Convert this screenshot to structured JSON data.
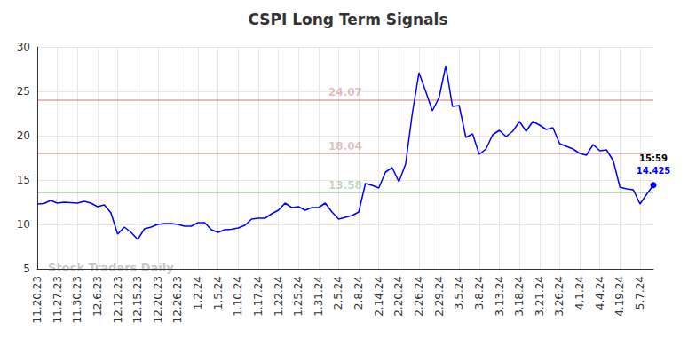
{
  "chart_data": {
    "type": "line",
    "title": "CSPI Long Term Signals",
    "watermark": "Stock Traders Daily",
    "color": "#0000ff",
    "grid": true,
    "categories": [
      "11.20.23",
      null,
      null,
      "11.27.23",
      null,
      null,
      "11.30.23",
      null,
      null,
      "12.6.23",
      null,
      null,
      "12.12.23",
      null,
      null,
      "12.15.23",
      null,
      null,
      "12.20.23",
      null,
      null,
      "12.26.23",
      null,
      null,
      "1.2.24",
      null,
      null,
      "1.5.24",
      null,
      null,
      "1.10.24",
      null,
      null,
      "1.17.24",
      null,
      null,
      "1.22.24",
      null,
      null,
      "1.25.24",
      null,
      null,
      "1.31.24",
      null,
      null,
      "2.5.24",
      null,
      null,
      "2.8.24",
      null,
      null,
      "2.14.24",
      null,
      null,
      "2.20.24",
      null,
      null,
      "2.26.24",
      null,
      null,
      "2.29.24",
      null,
      null,
      "3.5.24",
      null,
      null,
      "3.8.24",
      null,
      null,
      "3.13.24",
      null,
      null,
      "3.18.24",
      null,
      null,
      "3.21.24",
      null,
      null,
      "3.26.24",
      null,
      null,
      "4.1.24",
      null,
      null,
      "4.4.24",
      null,
      null,
      "4.19.24",
      null,
      null,
      "5.7.24",
      null,
      null
    ],
    "values": [
      12.3,
      12.35,
      12.7,
      12.4,
      12.5,
      12.45,
      12.4,
      12.6,
      12.4,
      12.0,
      12.2,
      11.3,
      8.9,
      9.7,
      9.1,
      8.3,
      9.5,
      9.7,
      10.0,
      10.1,
      10.1,
      10.0,
      9.8,
      9.8,
      10.2,
      10.2,
      9.4,
      9.1,
      9.4,
      9.45,
      9.6,
      9.9,
      10.6,
      10.7,
      10.7,
      11.2,
      11.6,
      12.4,
      11.9,
      12.0,
      11.6,
      11.9,
      11.9,
      12.4,
      11.4,
      10.6,
      10.8,
      11.0,
      11.4,
      14.6,
      14.4,
      14.1,
      15.9,
      16.4,
      14.8,
      16.8,
      22.5,
      27.1,
      25.0,
      22.8,
      24.3,
      27.9,
      23.3,
      23.4,
      19.8,
      20.2,
      17.9,
      18.5,
      20.1,
      20.6,
      19.9,
      20.5,
      21.6,
      20.5,
      21.6,
      21.2,
      20.7,
      20.9,
      19.1,
      18.8,
      18.5,
      18.0,
      17.8,
      19.0,
      18.3,
      18.4,
      17.2,
      14.2,
      14.0,
      13.9,
      12.3,
      13.4,
      14.425
    ],
    "last_point_time": "15:59",
    "annotations": [
      {
        "text": "24.07",
        "value": 24.07,
        "color": "#8b0000"
      },
      {
        "text": "18.04",
        "value": 18.04,
        "color": "#8b0000"
      },
      {
        "text": "13.58",
        "value": 13.58,
        "color": "#006400"
      }
    ],
    "ylim": [
      5,
      30
    ],
    "yticks": [
      5,
      10,
      15,
      20,
      25,
      30
    ]
  }
}
